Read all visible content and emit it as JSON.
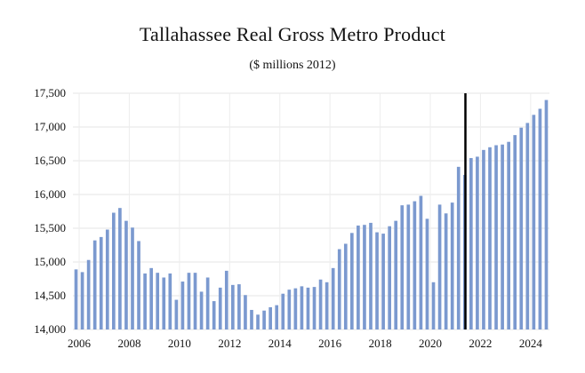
{
  "chart_data": {
    "type": "bar",
    "title": "Tallahassee Real Gross Metro Product",
    "subtitle": "($ millions 2012)",
    "xlabel": "",
    "ylabel": "",
    "ylim": [
      14000,
      17500
    ],
    "yticks": [
      "14,000",
      "14,500",
      "15,000",
      "15,500",
      "16,000",
      "16,500",
      "17,000",
      "17,500"
    ],
    "ytick_values": [
      14000,
      14500,
      15000,
      15500,
      16000,
      16500,
      17000,
      17500
    ],
    "xticks": [
      "2006",
      "2008",
      "2010",
      "2012",
      "2014",
      "2016",
      "2018",
      "2020",
      "2022",
      "2024"
    ],
    "xtick_values": [
      2006,
      2008,
      2010,
      2012,
      2014,
      2016,
      2018,
      2020,
      2022,
      2024
    ],
    "x_start": 2005.75,
    "x_step": 0.25,
    "values": [
      14890,
      14850,
      15030,
      15320,
      15370,
      15480,
      15730,
      15800,
      15610,
      15510,
      15310,
      14830,
      14910,
      14840,
      14770,
      14830,
      14440,
      14710,
      14840,
      14840,
      14560,
      14770,
      14420,
      14620,
      14870,
      14660,
      14670,
      14510,
      14290,
      14220,
      14280,
      14330,
      14360,
      14530,
      14590,
      14610,
      14640,
      14620,
      14630,
      14740,
      14700,
      14910,
      15190,
      15270,
      15430,
      15540,
      15550,
      15580,
      15440,
      15420,
      15530,
      15610,
      15840,
      15850,
      15900,
      15980,
      15640,
      14700,
      15850,
      15720,
      15880,
      16410,
      16290,
      16540,
      16560,
      16660,
      16700,
      16730,
      16740,
      16780,
      16880,
      16990,
      17060,
      17180,
      17270,
      17400
    ],
    "vline_x": 2021.4,
    "grid": true,
    "bar_color": "#7b99cf",
    "vline_color": "#000000"
  }
}
